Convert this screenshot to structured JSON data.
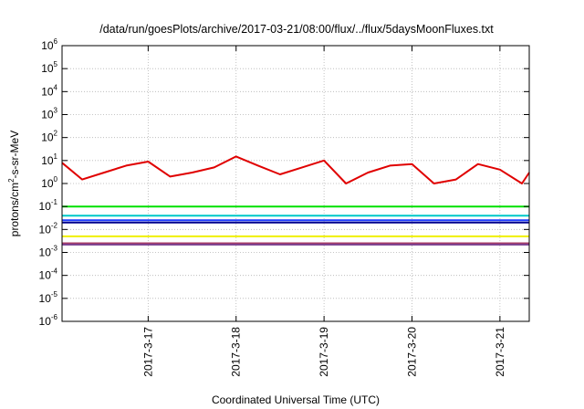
{
  "chart_data": {
    "type": "line",
    "title": "/data/run/goesPlots/archive/2017-03-21/08:00/flux/../flux/5daysMoonFluxes.txt",
    "xlabel": "Coordinated Universal Time (UTC)",
    "ylabel": {
      "base": "protons/cm",
      "sup": "2",
      "rest": "-s-sr-MeV"
    },
    "yscale": "log",
    "ylim": [
      1e-06,
      1000000.0
    ],
    "xlim": [
      "2017-03-16T00:30",
      "2017-03-21T08:00"
    ],
    "grid": true,
    "legend": "none",
    "xticks": [
      "2017-3-17",
      "2017-3-18",
      "2017-3-19",
      "2017-3-20",
      "2017-3-21"
    ],
    "xtick_values": [
      "2017-03-17",
      "2017-03-18",
      "2017-03-19",
      "2017-03-20",
      "2017-03-21"
    ],
    "yticks": [
      {
        "base": "10",
        "exp": "-6"
      },
      {
        "base": "10",
        "exp": "-5"
      },
      {
        "base": "10",
        "exp": "-4"
      },
      {
        "base": "10",
        "exp": "-3"
      },
      {
        "base": "10",
        "exp": "-2"
      },
      {
        "base": "10",
        "exp": "-1"
      },
      {
        "base": "10",
        "exp": "0"
      },
      {
        "base": "10",
        "exp": "1"
      },
      {
        "base": "10",
        "exp": "2"
      },
      {
        "base": "10",
        "exp": "3"
      },
      {
        "base": "10",
        "exp": "4"
      },
      {
        "base": "10",
        "exp": "5"
      },
      {
        "base": "10",
        "exp": "6"
      }
    ],
    "series": [
      {
        "color": "#e00000",
        "x": [
          "2017-03-16T00:30",
          "2017-03-16T06:00",
          "2017-03-16T12:00",
          "2017-03-16T18:00",
          "2017-03-17T00:00",
          "2017-03-17T06:00",
          "2017-03-17T12:00",
          "2017-03-17T18:00",
          "2017-03-18T00:00",
          "2017-03-18T06:00",
          "2017-03-18T12:00",
          "2017-03-18T18:00",
          "2017-03-19T00:00",
          "2017-03-19T06:00",
          "2017-03-19T12:00",
          "2017-03-19T18:00",
          "2017-03-20T00:00",
          "2017-03-20T06:00",
          "2017-03-20T12:00",
          "2017-03-20T18:00",
          "2017-03-21T00:00",
          "2017-03-21T06:00",
          "2017-03-21T08:00"
        ],
        "y": [
          8,
          1.5,
          3,
          6,
          9,
          2,
          3,
          5,
          15,
          6,
          2.5,
          5,
          10,
          1,
          3,
          6,
          7,
          1,
          1.5,
          7,
          4,
          1,
          3
        ]
      },
      {
        "color": "#00e000",
        "x": [
          "2017-03-16T00:30",
          "2017-03-17T00:00",
          "2017-03-18T00:00",
          "2017-03-19T00:00",
          "2017-03-20T00:00",
          "2017-03-21T00:00",
          "2017-03-21T08:00"
        ],
        "y": [
          0.1,
          0.1,
          0.1,
          0.1,
          0.1,
          0.1,
          0.1
        ]
      },
      {
        "color": "#00c8c8",
        "x": [
          "2017-03-16T00:30",
          "2017-03-17T00:00",
          "2017-03-18T00:00",
          "2017-03-19T00:00",
          "2017-03-20T00:00",
          "2017-03-21T00:00",
          "2017-03-21T08:00"
        ],
        "y": [
          0.04,
          0.04,
          0.04,
          0.04,
          0.04,
          0.04,
          0.04
        ]
      },
      {
        "color": "#1e3cff",
        "x": [
          "2017-03-16T00:30",
          "2017-03-17T00:00",
          "2017-03-18T00:00",
          "2017-03-19T00:00",
          "2017-03-20T00:00",
          "2017-03-21T00:00",
          "2017-03-21T08:00"
        ],
        "y": [
          0.025,
          0.025,
          0.025,
          0.025,
          0.025,
          0.025,
          0.025
        ]
      },
      {
        "color": "#00008c",
        "x": [
          "2017-03-16T00:30",
          "2017-03-17T00:00",
          "2017-03-18T00:00",
          "2017-03-19T00:00",
          "2017-03-20T00:00",
          "2017-03-21T00:00",
          "2017-03-21T08:00"
        ],
        "y": [
          0.02,
          0.02,
          0.02,
          0.02,
          0.02,
          0.02,
          0.02
        ]
      },
      {
        "color": "#f0f000",
        "x": [
          "2017-03-16T00:30",
          "2017-03-17T00:00",
          "2017-03-18T00:00",
          "2017-03-19T00:00",
          "2017-03-20T00:00",
          "2017-03-21T00:00",
          "2017-03-21T08:00"
        ],
        "y": [
          0.005,
          0.005,
          0.005,
          0.005,
          0.005,
          0.005,
          0.005
        ]
      },
      {
        "color": "#aa3c64",
        "x": [
          "2017-03-16T00:30",
          "2017-03-17T00:00",
          "2017-03-18T00:00",
          "2017-03-19T00:00",
          "2017-03-20T00:00",
          "2017-03-21T00:00",
          "2017-03-21T08:00"
        ],
        "y": [
          0.0025,
          0.0025,
          0.0025,
          0.0025,
          0.0025,
          0.0025,
          0.0025
        ]
      },
      {
        "color": "#7a3c8c",
        "x": [
          "2017-03-16T00:30",
          "2017-03-17T00:00",
          "2017-03-18T00:00",
          "2017-03-19T00:00",
          "2017-03-20T00:00",
          "2017-03-21T00:00",
          "2017-03-21T08:00"
        ],
        "y": [
          0.0022,
          0.0022,
          0.0022,
          0.0022,
          0.0022,
          0.0022,
          0.0022
        ]
      }
    ]
  }
}
